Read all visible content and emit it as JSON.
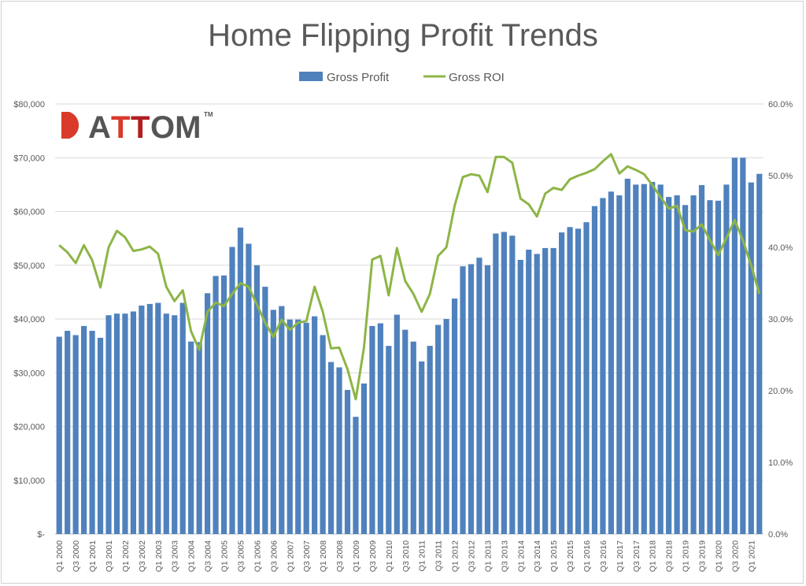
{
  "chart_data": {
    "type": "bar+line",
    "title": "Home Flipping  Profit Trends",
    "logo_text": "ATTOM",
    "legend_position": "top",
    "grid": true,
    "colors": {
      "bar": "#4f81bd",
      "line": "#8db547",
      "grid": "#d9d9d9",
      "title": "#595959",
      "axis_text": "#595959"
    },
    "categories": [
      "Q1 2000",
      "Q2 2000",
      "Q3 2000",
      "Q4 2000",
      "Q1 2001",
      "Q2 2001",
      "Q3 2001",
      "Q4 2001",
      "Q1 2002",
      "Q2 2002",
      "Q3 2002",
      "Q4 2002",
      "Q1 2003",
      "Q2 2003",
      "Q3 2003",
      "Q4 2003",
      "Q1 2004",
      "Q2 2004",
      "Q3 2004",
      "Q4 2004",
      "Q1 2005",
      "Q2 2005",
      "Q3 2005",
      "Q4 2005",
      "Q1 2006",
      "Q2 2006",
      "Q3 2006",
      "Q4 2006",
      "Q1 2007",
      "Q2 2007",
      "Q3 2007",
      "Q4 2007",
      "Q1 2008",
      "Q2 2008",
      "Q3 2008",
      "Q4 2008",
      "Q1 2009",
      "Q2 2009",
      "Q3 2009",
      "Q4 2009",
      "Q1 2010",
      "Q2 2010",
      "Q3 2010",
      "Q4 2010",
      "Q1 2011",
      "Q2 2011",
      "Q3 2011",
      "Q4 2011",
      "Q1 2012",
      "Q2 2012",
      "Q3 2012",
      "Q4 2012",
      "Q1 2013",
      "Q2 2013",
      "Q3 2013",
      "Q4 2013",
      "Q1 2014",
      "Q2 2014",
      "Q3 2014",
      "Q4 2014",
      "Q1 2015",
      "Q2 2015",
      "Q3 2015",
      "Q4 2015",
      "Q1 2016",
      "Q2 2016",
      "Q3 2016",
      "Q4 2016",
      "Q1 2017",
      "Q2 2017",
      "Q3 2017",
      "Q4 2017",
      "Q1 2018",
      "Q2 2018",
      "Q3 2018",
      "Q4 2018",
      "Q1 2019",
      "Q2 2019",
      "Q3 2019",
      "Q4 2019",
      "Q1 2020",
      "Q2 2020",
      "Q3 2020",
      "Q4 2020",
      "Q1 2021",
      "Q2 2021"
    ],
    "x_tick_labels": [
      "Q1 2000",
      "Q3 2000",
      "Q1 2001",
      "Q3 2001",
      "Q1 2002",
      "Q3 2002",
      "Q1 2003",
      "Q3 2003",
      "Q1 2004",
      "Q3 2004",
      "Q1 2005",
      "Q3 2005",
      "Q1 2006",
      "Q3 2006",
      "Q1 2007",
      "Q3 2007",
      "Q1 2008",
      "Q3 2008",
      "Q1 2009",
      "Q3 2009",
      "Q1 2010",
      "Q3 2010",
      "Q1 2011",
      "Q3 2011",
      "Q1 2012",
      "Q3 2012",
      "Q1 2013",
      "Q3 2013",
      "Q1 2014",
      "Q3 2014",
      "Q1 2015",
      "Q3 2015",
      "Q1 2016",
      "Q3 2016",
      "Q1 2017",
      "Q3 2017",
      "Q1 2018",
      "Q3 2018",
      "Q1 2019",
      "Q3 2019",
      "Q1 2020",
      "Q3 2020",
      "Q1 2021"
    ],
    "y_left": {
      "ylim": [
        0,
        80000
      ],
      "ticks": [
        "$-",
        "$10,000",
        "$20,000",
        "$30,000",
        "$40,000",
        "$50,000",
        "$60,000",
        "$70,000",
        "$80,000"
      ]
    },
    "y_right": {
      "ylim": [
        0,
        60
      ],
      "ticks": [
        "0.0%",
        "10.0%",
        "20.0%",
        "30.0%",
        "40.0%",
        "50.0%",
        "60.0%"
      ]
    },
    "series": [
      {
        "name": "Gross Profit",
        "type": "bar",
        "axis": "left",
        "values": [
          36700,
          37800,
          37000,
          38700,
          37800,
          36500,
          40700,
          41000,
          41000,
          41400,
          42500,
          42800,
          43000,
          41000,
          40700,
          43000,
          35800,
          35700,
          44800,
          48000,
          48100,
          53400,
          57000,
          54000,
          50000,
          46000,
          41700,
          42400,
          39900,
          39900,
          39300,
          40500,
          37000,
          32000,
          31000,
          26800,
          21800,
          28000,
          38700,
          39200,
          35000,
          40800,
          38000,
          35800,
          32100,
          35000,
          38900,
          40000,
          43800,
          49800,
          50200,
          51400,
          50000,
          55900,
          56200,
          55500,
          51000,
          52900,
          52100,
          53200,
          53200,
          56100,
          57100,
          56800,
          58000,
          61000,
          62500,
          63700,
          63000,
          66100,
          65000,
          65100,
          65500,
          65000,
          62700,
          63000,
          61200,
          63000,
          64900,
          62100,
          62000,
          65000,
          70000,
          70000,
          65400,
          67000
        ]
      },
      {
        "name": "Gross ROI",
        "type": "line",
        "axis": "right",
        "values": [
          40.3,
          39.3,
          37.8,
          40.3,
          38.2,
          34.4,
          40.0,
          42.3,
          41.4,
          39.5,
          39.7,
          40.1,
          39.1,
          34.5,
          32.5,
          34.0,
          28.3,
          25.7,
          31.0,
          32.3,
          31.8,
          33.5,
          35.0,
          34.5,
          32.0,
          29.5,
          27.5,
          29.9,
          28.5,
          29.5,
          29.7,
          34.5,
          31.0,
          25.9,
          26.0,
          23.0,
          18.8,
          26.0,
          38.3,
          38.8,
          33.3,
          39.9,
          35.3,
          33.5,
          31.0,
          33.5,
          38.8,
          40.0,
          45.8,
          49.8,
          50.2,
          50.0,
          47.7,
          52.6,
          52.6,
          51.8,
          46.8,
          46.0,
          44.3,
          47.5,
          48.3,
          48.0,
          49.5,
          50.0,
          50.4,
          50.9,
          52.0,
          53.0,
          50.3,
          51.3,
          50.8,
          50.2,
          48.7,
          47.0,
          45.4,
          45.8,
          42.4,
          42.2,
          43.2,
          41.0,
          38.9,
          41.3,
          43.8,
          41.0,
          37.5,
          33.5
        ]
      }
    ]
  }
}
